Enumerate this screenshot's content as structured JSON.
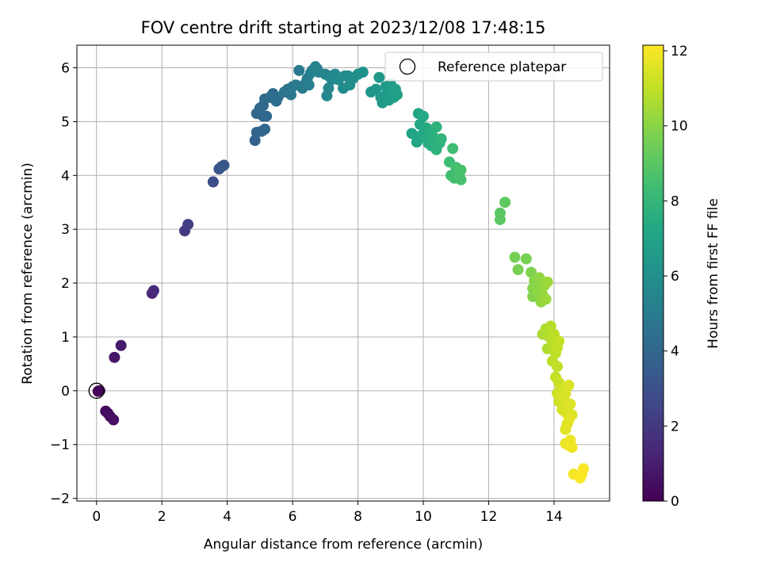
{
  "chart_data": {
    "type": "scatter",
    "title": "FOV centre drift starting at 2023/12/08 17:48:15",
    "xlabel": "Angular distance from reference (arcmin)",
    "ylabel": "Rotation from reference (arcmin)",
    "xlim": [
      -0.6,
      15.7
    ],
    "ylim": [
      -2.05,
      6.42
    ],
    "xticks": [
      0,
      2,
      4,
      6,
      8,
      10,
      12,
      14
    ],
    "yticks": [
      -2,
      -1,
      0,
      1,
      2,
      3,
      4,
      5,
      6
    ],
    "xtick_labels": [
      "0",
      "2",
      "4",
      "6",
      "8",
      "10",
      "12",
      "14"
    ],
    "ytick_labels": [
      "−2",
      "−1",
      "0",
      "1",
      "2",
      "3",
      "4",
      "5",
      "6"
    ],
    "grid": true,
    "legend": {
      "placement": "upper-right",
      "label": "Reference platepar"
    },
    "reference_point": {
      "x": 0,
      "y": 0
    },
    "colorbar": {
      "label": "Hours from first FF file",
      "range": [
        0,
        12.15
      ],
      "ticks": [
        0,
        2,
        4,
        6,
        8,
        10,
        12
      ],
      "tick_labels": [
        "0",
        "2",
        "4",
        "6",
        "8",
        "10",
        "12"
      ],
      "colormap": "viridis"
    },
    "points": [
      {
        "x": 0.05,
        "y": -0.01,
        "c": 0.05
      },
      {
        "x": 0.1,
        "y": 0.0,
        "c": 0.15
      },
      {
        "x": 0.28,
        "y": -0.38,
        "c": 0.25
      },
      {
        "x": 0.35,
        "y": -0.42,
        "c": 0.35
      },
      {
        "x": 0.42,
        "y": -0.48,
        "c": 0.45
      },
      {
        "x": 0.52,
        "y": -0.54,
        "c": 0.5
      },
      {
        "x": 0.55,
        "y": 0.62,
        "c": 0.7
      },
      {
        "x": 0.75,
        "y": 0.84,
        "c": 0.85
      },
      {
        "x": 1.7,
        "y": 1.81,
        "c": 1.3
      },
      {
        "x": 1.75,
        "y": 1.86,
        "c": 1.4
      },
      {
        "x": 2.7,
        "y": 2.97,
        "c": 2.1
      },
      {
        "x": 2.8,
        "y": 3.09,
        "c": 2.2
      },
      {
        "x": 3.57,
        "y": 3.88,
        "c": 2.9
      },
      {
        "x": 3.75,
        "y": 4.12,
        "c": 3.1
      },
      {
        "x": 3.82,
        "y": 4.16,
        "c": 3.2
      },
      {
        "x": 3.9,
        "y": 4.19,
        "c": 3.3
      },
      {
        "x": 4.85,
        "y": 4.65,
        "c": 3.8
      },
      {
        "x": 4.9,
        "y": 4.8,
        "c": 3.9
      },
      {
        "x": 5.05,
        "y": 4.82,
        "c": 4.0
      },
      {
        "x": 5.15,
        "y": 4.86,
        "c": 4.05
      },
      {
        "x": 4.9,
        "y": 5.15,
        "c": 4.0
      },
      {
        "x": 5.0,
        "y": 5.25,
        "c": 4.05
      },
      {
        "x": 5.1,
        "y": 5.3,
        "c": 4.1
      },
      {
        "x": 5.1,
        "y": 5.1,
        "c": 4.1
      },
      {
        "x": 5.2,
        "y": 5.1,
        "c": 4.15
      },
      {
        "x": 5.15,
        "y": 5.42,
        "c": 4.2
      },
      {
        "x": 5.3,
        "y": 5.45,
        "c": 4.25
      },
      {
        "x": 5.4,
        "y": 5.52,
        "c": 4.3
      },
      {
        "x": 5.5,
        "y": 5.38,
        "c": 4.35
      },
      {
        "x": 5.55,
        "y": 5.45,
        "c": 4.4
      },
      {
        "x": 5.75,
        "y": 5.55,
        "c": 4.6
      },
      {
        "x": 5.85,
        "y": 5.6,
        "c": 4.7
      },
      {
        "x": 5.95,
        "y": 5.5,
        "c": 4.75
      },
      {
        "x": 6.0,
        "y": 5.65,
        "c": 4.8
      },
      {
        "x": 6.1,
        "y": 5.68,
        "c": 4.9
      },
      {
        "x": 6.2,
        "y": 5.95,
        "c": 4.95
      },
      {
        "x": 6.3,
        "y": 5.62,
        "c": 5.0
      },
      {
        "x": 6.4,
        "y": 5.72,
        "c": 5.05
      },
      {
        "x": 6.45,
        "y": 5.8,
        "c": 5.1
      },
      {
        "x": 6.5,
        "y": 5.68,
        "c": 5.15
      },
      {
        "x": 6.55,
        "y": 5.9,
        "c": 5.2
      },
      {
        "x": 6.6,
        "y": 5.95,
        "c": 5.25
      },
      {
        "x": 6.7,
        "y": 6.02,
        "c": 5.3
      },
      {
        "x": 6.75,
        "y": 5.98,
        "c": 5.35
      },
      {
        "x": 6.8,
        "y": 5.92,
        "c": 5.4
      },
      {
        "x": 7.0,
        "y": 5.88,
        "c": 5.5
      },
      {
        "x": 7.1,
        "y": 5.85,
        "c": 5.55
      },
      {
        "x": 7.1,
        "y": 5.62,
        "c": 5.6
      },
      {
        "x": 7.05,
        "y": 5.48,
        "c": 5.6
      },
      {
        "x": 7.2,
        "y": 5.78,
        "c": 5.65
      },
      {
        "x": 7.3,
        "y": 5.88,
        "c": 5.7
      },
      {
        "x": 7.4,
        "y": 5.78,
        "c": 5.75
      },
      {
        "x": 7.55,
        "y": 5.62,
        "c": 5.8
      },
      {
        "x": 7.6,
        "y": 5.85,
        "c": 5.85
      },
      {
        "x": 7.7,
        "y": 5.85,
        "c": 5.9
      },
      {
        "x": 7.75,
        "y": 5.68,
        "c": 5.95
      },
      {
        "x": 7.85,
        "y": 5.8,
        "c": 6.0
      },
      {
        "x": 8.0,
        "y": 5.88,
        "c": 6.05
      },
      {
        "x": 8.15,
        "y": 5.92,
        "c": 6.1
      },
      {
        "x": 8.4,
        "y": 5.55,
        "c": 6.3
      },
      {
        "x": 8.55,
        "y": 5.6,
        "c": 6.35
      },
      {
        "x": 8.65,
        "y": 5.82,
        "c": 6.4
      },
      {
        "x": 8.7,
        "y": 5.45,
        "c": 6.45
      },
      {
        "x": 8.75,
        "y": 5.35,
        "c": 6.5
      },
      {
        "x": 8.85,
        "y": 5.65,
        "c": 6.55
      },
      {
        "x": 8.9,
        "y": 5.55,
        "c": 6.6
      },
      {
        "x": 8.95,
        "y": 5.4,
        "c": 6.65
      },
      {
        "x": 9.0,
        "y": 5.7,
        "c": 6.7
      },
      {
        "x": 9.05,
        "y": 5.5,
        "c": 6.75
      },
      {
        "x": 9.1,
        "y": 5.45,
        "c": 6.8
      },
      {
        "x": 9.2,
        "y": 5.5,
        "c": 6.85
      },
      {
        "x": 9.15,
        "y": 5.6,
        "c": 6.85
      },
      {
        "x": 9.65,
        "y": 4.78,
        "c": 7.1
      },
      {
        "x": 9.8,
        "y": 4.62,
        "c": 7.15
      },
      {
        "x": 9.85,
        "y": 5.15,
        "c": 7.2
      },
      {
        "x": 9.9,
        "y": 4.95,
        "c": 7.25
      },
      {
        "x": 9.95,
        "y": 4.75,
        "c": 7.3
      },
      {
        "x": 10.0,
        "y": 5.1,
        "c": 7.35
      },
      {
        "x": 10.05,
        "y": 4.7,
        "c": 7.4
      },
      {
        "x": 10.1,
        "y": 4.88,
        "c": 7.45
      },
      {
        "x": 10.15,
        "y": 4.6,
        "c": 7.5
      },
      {
        "x": 10.2,
        "y": 4.8,
        "c": 7.55
      },
      {
        "x": 10.25,
        "y": 4.55,
        "c": 7.6
      },
      {
        "x": 10.3,
        "y": 4.72,
        "c": 7.65
      },
      {
        "x": 10.35,
        "y": 4.62,
        "c": 7.7
      },
      {
        "x": 10.4,
        "y": 4.9,
        "c": 7.75
      },
      {
        "x": 10.4,
        "y": 4.48,
        "c": 7.8
      },
      {
        "x": 10.5,
        "y": 4.6,
        "c": 7.85
      },
      {
        "x": 10.55,
        "y": 4.68,
        "c": 7.9
      },
      {
        "x": 10.8,
        "y": 4.25,
        "c": 8.3
      },
      {
        "x": 10.9,
        "y": 4.5,
        "c": 8.35
      },
      {
        "x": 10.85,
        "y": 4.0,
        "c": 8.4
      },
      {
        "x": 10.95,
        "y": 3.95,
        "c": 8.45
      },
      {
        "x": 11.0,
        "y": 4.15,
        "c": 8.5
      },
      {
        "x": 11.1,
        "y": 4.0,
        "c": 8.55
      },
      {
        "x": 11.15,
        "y": 3.92,
        "c": 8.6
      },
      {
        "x": 11.15,
        "y": 4.1,
        "c": 8.65
      },
      {
        "x": 12.35,
        "y": 3.3,
        "c": 9.0
      },
      {
        "x": 12.35,
        "y": 3.18,
        "c": 9.05
      },
      {
        "x": 12.5,
        "y": 3.5,
        "c": 9.1
      },
      {
        "x": 12.8,
        "y": 2.48,
        "c": 9.6
      },
      {
        "x": 12.9,
        "y": 2.25,
        "c": 9.65
      },
      {
        "x": 13.15,
        "y": 2.45,
        "c": 9.7
      },
      {
        "x": 13.3,
        "y": 2.2,
        "c": 9.8
      },
      {
        "x": 13.35,
        "y": 1.75,
        "c": 9.85
      },
      {
        "x": 13.35,
        "y": 1.9,
        "c": 9.9
      },
      {
        "x": 13.4,
        "y": 2.05,
        "c": 9.95
      },
      {
        "x": 13.45,
        "y": 1.95,
        "c": 10.0
      },
      {
        "x": 13.5,
        "y": 1.85,
        "c": 10.05
      },
      {
        "x": 13.55,
        "y": 2.1,
        "c": 10.1
      },
      {
        "x": 13.6,
        "y": 1.65,
        "c": 10.15
      },
      {
        "x": 13.65,
        "y": 1.78,
        "c": 10.2
      },
      {
        "x": 13.7,
        "y": 1.95,
        "c": 10.25
      },
      {
        "x": 13.75,
        "y": 1.7,
        "c": 10.3
      },
      {
        "x": 13.8,
        "y": 2.02,
        "c": 10.35
      },
      {
        "x": 13.65,
        "y": 1.05,
        "c": 10.6
      },
      {
        "x": 13.75,
        "y": 1.15,
        "c": 10.65
      },
      {
        "x": 13.8,
        "y": 0.78,
        "c": 10.7
      },
      {
        "x": 13.85,
        "y": 1.0,
        "c": 10.75
      },
      {
        "x": 13.9,
        "y": 1.2,
        "c": 10.8
      },
      {
        "x": 13.95,
        "y": 0.88,
        "c": 10.85
      },
      {
        "x": 13.95,
        "y": 0.55,
        "c": 10.9
      },
      {
        "x": 14.0,
        "y": 1.05,
        "c": 10.9
      },
      {
        "x": 14.05,
        "y": 0.7,
        "c": 10.95
      },
      {
        "x": 14.1,
        "y": 0.45,
        "c": 11.0
      },
      {
        "x": 14.15,
        "y": 0.92,
        "c": 11.05
      },
      {
        "x": 14.1,
        "y": 0.8,
        "c": 11.05
      },
      {
        "x": 14.05,
        "y": 0.25,
        "c": 11.1
      },
      {
        "x": 14.15,
        "y": 0.15,
        "c": 11.15
      },
      {
        "x": 14.1,
        "y": -0.05,
        "c": 11.2
      },
      {
        "x": 14.15,
        "y": -0.2,
        "c": 11.25
      },
      {
        "x": 14.2,
        "y": 0.05,
        "c": 11.3
      },
      {
        "x": 14.25,
        "y": -0.35,
        "c": 11.35
      },
      {
        "x": 14.2,
        "y": -0.1,
        "c": 11.35
      },
      {
        "x": 14.3,
        "y": -0.15,
        "c": 11.4
      },
      {
        "x": 14.35,
        "y": -0.05,
        "c": 11.45
      },
      {
        "x": 14.35,
        "y": -0.4,
        "c": 11.45
      },
      {
        "x": 14.4,
        "y": -0.3,
        "c": 11.5
      },
      {
        "x": 14.45,
        "y": 0.1,
        "c": 11.5
      },
      {
        "x": 14.5,
        "y": -0.25,
        "c": 11.55
      },
      {
        "x": 14.55,
        "y": -0.45,
        "c": 11.55
      },
      {
        "x": 14.4,
        "y": -0.62,
        "c": 11.6
      },
      {
        "x": 14.35,
        "y": -0.72,
        "c": 11.65
      },
      {
        "x": 14.45,
        "y": -0.55,
        "c": 11.65
      },
      {
        "x": 14.35,
        "y": -0.98,
        "c": 11.8
      },
      {
        "x": 14.45,
        "y": -1.02,
        "c": 11.85
      },
      {
        "x": 14.5,
        "y": -0.92,
        "c": 11.85
      },
      {
        "x": 14.55,
        "y": -1.05,
        "c": 11.9
      },
      {
        "x": 14.6,
        "y": -1.55,
        "c": 12.0
      },
      {
        "x": 14.8,
        "y": -1.62,
        "c": 12.05
      },
      {
        "x": 14.9,
        "y": -1.45,
        "c": 12.1
      },
      {
        "x": 14.85,
        "y": -1.55,
        "c": 12.1
      }
    ]
  }
}
